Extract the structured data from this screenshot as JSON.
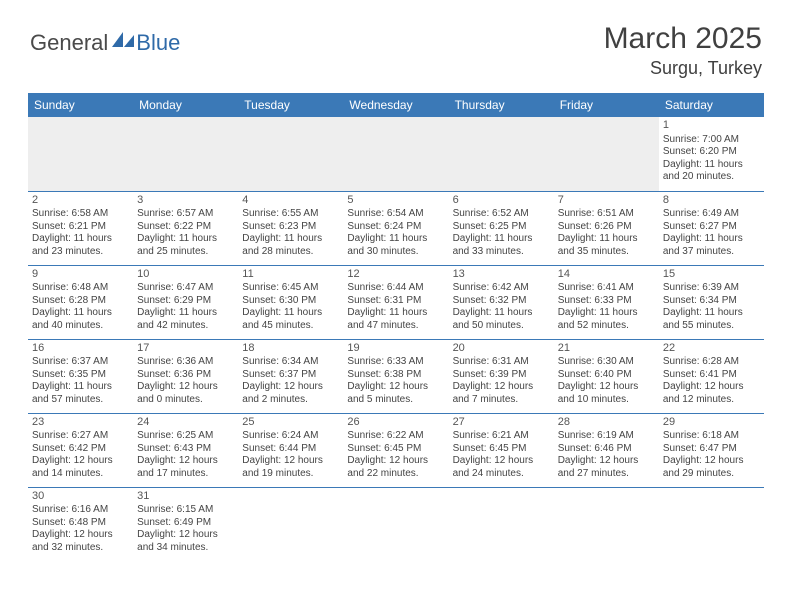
{
  "brand": {
    "part1": "General",
    "part2": "Blue",
    "color1": "#4a4a4a",
    "color2": "#2f6aa8"
  },
  "title": "March 2025",
  "location": "Surgu, Turkey",
  "header_bg": "#3b79b7",
  "header_fg": "#ffffff",
  "divider_color": "#3b79b7",
  "empty_bg": "#eeeeee",
  "weekdays": [
    "Sunday",
    "Monday",
    "Tuesday",
    "Wednesday",
    "Thursday",
    "Friday",
    "Saturday"
  ],
  "weeks": [
    [
      null,
      null,
      null,
      null,
      null,
      null,
      {
        "n": "1",
        "sr": "Sunrise: 7:00 AM",
        "ss": "Sunset: 6:20 PM",
        "dl": "Daylight: 11 hours and 20 minutes."
      }
    ],
    [
      {
        "n": "2",
        "sr": "Sunrise: 6:58 AM",
        "ss": "Sunset: 6:21 PM",
        "dl": "Daylight: 11 hours and 23 minutes."
      },
      {
        "n": "3",
        "sr": "Sunrise: 6:57 AM",
        "ss": "Sunset: 6:22 PM",
        "dl": "Daylight: 11 hours and 25 minutes."
      },
      {
        "n": "4",
        "sr": "Sunrise: 6:55 AM",
        "ss": "Sunset: 6:23 PM",
        "dl": "Daylight: 11 hours and 28 minutes."
      },
      {
        "n": "5",
        "sr": "Sunrise: 6:54 AM",
        "ss": "Sunset: 6:24 PM",
        "dl": "Daylight: 11 hours and 30 minutes."
      },
      {
        "n": "6",
        "sr": "Sunrise: 6:52 AM",
        "ss": "Sunset: 6:25 PM",
        "dl": "Daylight: 11 hours and 33 minutes."
      },
      {
        "n": "7",
        "sr": "Sunrise: 6:51 AM",
        "ss": "Sunset: 6:26 PM",
        "dl": "Daylight: 11 hours and 35 minutes."
      },
      {
        "n": "8",
        "sr": "Sunrise: 6:49 AM",
        "ss": "Sunset: 6:27 PM",
        "dl": "Daylight: 11 hours and 37 minutes."
      }
    ],
    [
      {
        "n": "9",
        "sr": "Sunrise: 6:48 AM",
        "ss": "Sunset: 6:28 PM",
        "dl": "Daylight: 11 hours and 40 minutes."
      },
      {
        "n": "10",
        "sr": "Sunrise: 6:47 AM",
        "ss": "Sunset: 6:29 PM",
        "dl": "Daylight: 11 hours and 42 minutes."
      },
      {
        "n": "11",
        "sr": "Sunrise: 6:45 AM",
        "ss": "Sunset: 6:30 PM",
        "dl": "Daylight: 11 hours and 45 minutes."
      },
      {
        "n": "12",
        "sr": "Sunrise: 6:44 AM",
        "ss": "Sunset: 6:31 PM",
        "dl": "Daylight: 11 hours and 47 minutes."
      },
      {
        "n": "13",
        "sr": "Sunrise: 6:42 AM",
        "ss": "Sunset: 6:32 PM",
        "dl": "Daylight: 11 hours and 50 minutes."
      },
      {
        "n": "14",
        "sr": "Sunrise: 6:41 AM",
        "ss": "Sunset: 6:33 PM",
        "dl": "Daylight: 11 hours and 52 minutes."
      },
      {
        "n": "15",
        "sr": "Sunrise: 6:39 AM",
        "ss": "Sunset: 6:34 PM",
        "dl": "Daylight: 11 hours and 55 minutes."
      }
    ],
    [
      {
        "n": "16",
        "sr": "Sunrise: 6:37 AM",
        "ss": "Sunset: 6:35 PM",
        "dl": "Daylight: 11 hours and 57 minutes."
      },
      {
        "n": "17",
        "sr": "Sunrise: 6:36 AM",
        "ss": "Sunset: 6:36 PM",
        "dl": "Daylight: 12 hours and 0 minutes."
      },
      {
        "n": "18",
        "sr": "Sunrise: 6:34 AM",
        "ss": "Sunset: 6:37 PM",
        "dl": "Daylight: 12 hours and 2 minutes."
      },
      {
        "n": "19",
        "sr": "Sunrise: 6:33 AM",
        "ss": "Sunset: 6:38 PM",
        "dl": "Daylight: 12 hours and 5 minutes."
      },
      {
        "n": "20",
        "sr": "Sunrise: 6:31 AM",
        "ss": "Sunset: 6:39 PM",
        "dl": "Daylight: 12 hours and 7 minutes."
      },
      {
        "n": "21",
        "sr": "Sunrise: 6:30 AM",
        "ss": "Sunset: 6:40 PM",
        "dl": "Daylight: 12 hours and 10 minutes."
      },
      {
        "n": "22",
        "sr": "Sunrise: 6:28 AM",
        "ss": "Sunset: 6:41 PM",
        "dl": "Daylight: 12 hours and 12 minutes."
      }
    ],
    [
      {
        "n": "23",
        "sr": "Sunrise: 6:27 AM",
        "ss": "Sunset: 6:42 PM",
        "dl": "Daylight: 12 hours and 14 minutes."
      },
      {
        "n": "24",
        "sr": "Sunrise: 6:25 AM",
        "ss": "Sunset: 6:43 PM",
        "dl": "Daylight: 12 hours and 17 minutes."
      },
      {
        "n": "25",
        "sr": "Sunrise: 6:24 AM",
        "ss": "Sunset: 6:44 PM",
        "dl": "Daylight: 12 hours and 19 minutes."
      },
      {
        "n": "26",
        "sr": "Sunrise: 6:22 AM",
        "ss": "Sunset: 6:45 PM",
        "dl": "Daylight: 12 hours and 22 minutes."
      },
      {
        "n": "27",
        "sr": "Sunrise: 6:21 AM",
        "ss": "Sunset: 6:45 PM",
        "dl": "Daylight: 12 hours and 24 minutes."
      },
      {
        "n": "28",
        "sr": "Sunrise: 6:19 AM",
        "ss": "Sunset: 6:46 PM",
        "dl": "Daylight: 12 hours and 27 minutes."
      },
      {
        "n": "29",
        "sr": "Sunrise: 6:18 AM",
        "ss": "Sunset: 6:47 PM",
        "dl": "Daylight: 12 hours and 29 minutes."
      }
    ],
    [
      {
        "n": "30",
        "sr": "Sunrise: 6:16 AM",
        "ss": "Sunset: 6:48 PM",
        "dl": "Daylight: 12 hours and 32 minutes."
      },
      {
        "n": "31",
        "sr": "Sunrise: 6:15 AM",
        "ss": "Sunset: 6:49 PM",
        "dl": "Daylight: 12 hours and 34 minutes."
      },
      null,
      null,
      null,
      null,
      null
    ]
  ]
}
